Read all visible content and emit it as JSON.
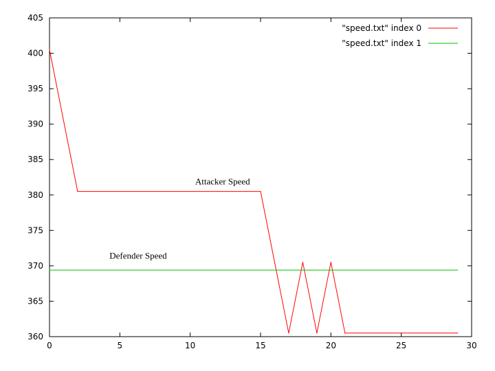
{
  "chart_data": {
    "type": "line",
    "xlim": [
      0,
      30
    ],
    "ylim": [
      360,
      405
    ],
    "xticks": [
      0,
      5,
      10,
      15,
      20,
      25,
      30
    ],
    "yticks": [
      360,
      365,
      370,
      375,
      380,
      385,
      390,
      395,
      400,
      405
    ],
    "grid": false,
    "legend_position": "top-right",
    "series": [
      {
        "name": "\"speed.txt\" index 0",
        "color": "#ff0000",
        "x": [
          0,
          2,
          15,
          17,
          18,
          19,
          20,
          21,
          29
        ],
        "y": [
          400.5,
          380.5,
          380.5,
          360.5,
          370.5,
          360.5,
          370.5,
          360.5,
          360.5
        ]
      },
      {
        "name": "\"speed.txt\" index 1",
        "color": "#00c000",
        "x": [
          0,
          29
        ],
        "y": [
          369.4,
          369.4
        ]
      }
    ],
    "annotations": [
      {
        "text": "Attacker Speed",
        "x": 12.3,
        "y": 381.5
      },
      {
        "text": "Defender Speed",
        "x": 6.3,
        "y": 371.0
      }
    ]
  }
}
